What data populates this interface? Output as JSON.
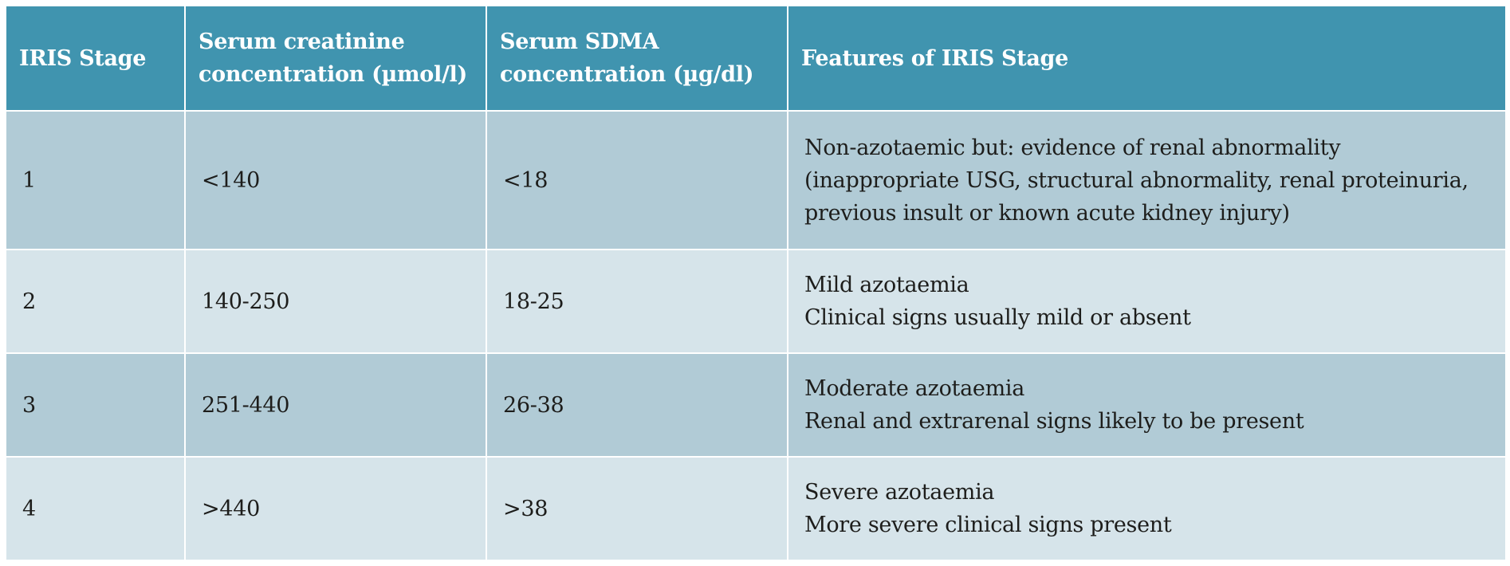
{
  "table": {
    "headers": [
      "IRIS Stage",
      "Serum creatinine concentration (µmol/l)",
      "Serum SDMA concentration (µg/dl)",
      "Features of IRIS Stage"
    ],
    "rows": [
      {
        "stage": "1",
        "creatinine": "<140",
        "sdma": "<18",
        "features": [
          "Non-azotaemic but: evidence of renal abnormality (inappropriate USG, structural abnormality, renal proteinuria, previous insult or known acute kidney injury)"
        ]
      },
      {
        "stage": "2",
        "creatinine": "140-250",
        "sdma": "18-25",
        "features": [
          "Mild azotaemia",
          "Clinical signs usually mild or absent"
        ]
      },
      {
        "stage": "3",
        "creatinine": "251-440",
        "sdma": "26-38",
        "features": [
          "Moderate azotaemia",
          "Renal and extrarenal signs likely to be present"
        ]
      },
      {
        "stage": "4",
        "creatinine": ">440",
        "sdma": ">38",
        "features": [
          "Severe azotaemia",
          "More severe clinical signs present"
        ]
      }
    ],
    "colors": {
      "header_bg": "#4094af",
      "row_dark": "#b1cbd6",
      "row_light": "#d6e4ea"
    }
  }
}
